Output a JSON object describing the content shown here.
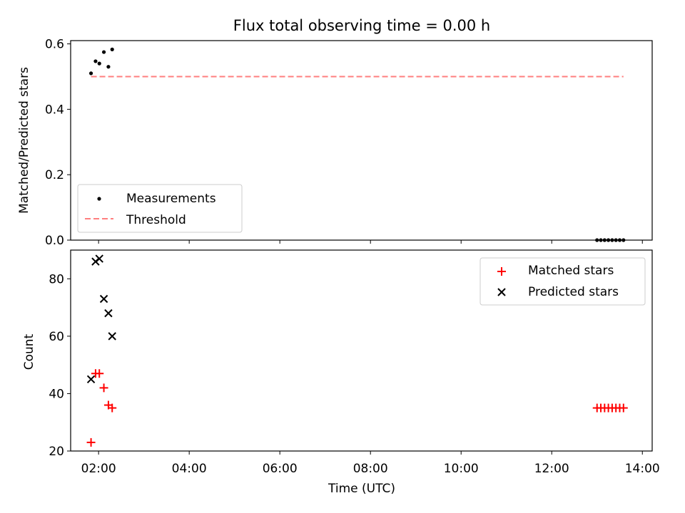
{
  "title": "Flux total observing time = 0.00 h",
  "x_axis": {
    "label": "Time (UTC)",
    "ticks": [
      "02:00",
      "04:00",
      "06:00",
      "08:00",
      "10:00",
      "12:00",
      "14:00"
    ]
  },
  "chart_data": [
    {
      "type": "scatter",
      "ylabel": "Matched/Predicted stars",
      "xlim": [
        "01:23",
        "14:13"
      ],
      "ylim": [
        0,
        0.61
      ],
      "yticks": [
        "0.0",
        "0.2",
        "0.4",
        "0.6"
      ],
      "legend_position": "lower-left",
      "series": [
        {
          "name": "Measurements",
          "kind": "scatter",
          "color": "#000000",
          "points": [
            {
              "x": "01:50",
              "y": 0.51
            },
            {
              "x": "01:56",
              "y": 0.547
            },
            {
              "x": "02:01",
              "y": 0.54
            },
            {
              "x": "02:07",
              "y": 0.575
            },
            {
              "x": "02:13",
              "y": 0.53
            },
            {
              "x": "02:18",
              "y": 0.583
            },
            {
              "x": "13:00",
              "y": 0.0
            },
            {
              "x": "13:05",
              "y": 0.0
            },
            {
              "x": "13:10",
              "y": 0.0
            },
            {
              "x": "13:15",
              "y": 0.0
            },
            {
              "x": "13:20",
              "y": 0.0
            },
            {
              "x": "13:25",
              "y": 0.0
            },
            {
              "x": "13:30",
              "y": 0.0
            },
            {
              "x": "13:35",
              "y": 0.0
            }
          ]
        },
        {
          "name": "Threshold",
          "kind": "line",
          "style": "dashed",
          "color": "#ff7f7f",
          "points": [
            {
              "x": "01:50",
              "y": 0.5
            },
            {
              "x": "13:35",
              "y": 0.5
            }
          ]
        }
      ]
    },
    {
      "type": "scatter",
      "ylabel": "Count",
      "xlim": [
        "01:23",
        "14:13"
      ],
      "ylim": [
        20,
        90
      ],
      "yticks": [
        "20",
        "40",
        "60",
        "80"
      ],
      "legend_position": "upper-right",
      "series": [
        {
          "name": "Matched stars",
          "marker": "plus",
          "color": "#ff0000",
          "points": [
            {
              "x": "01:50",
              "y": 23
            },
            {
              "x": "01:56",
              "y": 47
            },
            {
              "x": "02:01",
              "y": 47
            },
            {
              "x": "02:07",
              "y": 42
            },
            {
              "x": "02:13",
              "y": 36
            },
            {
              "x": "02:18",
              "y": 35
            },
            {
              "x": "13:00",
              "y": 35
            },
            {
              "x": "13:05",
              "y": 35
            },
            {
              "x": "13:10",
              "y": 35
            },
            {
              "x": "13:15",
              "y": 35
            },
            {
              "x": "13:20",
              "y": 35
            },
            {
              "x": "13:25",
              "y": 35
            },
            {
              "x": "13:30",
              "y": 35
            },
            {
              "x": "13:35",
              "y": 35
            }
          ]
        },
        {
          "name": "Predicted stars",
          "marker": "x",
          "color": "#000000",
          "points": [
            {
              "x": "01:50",
              "y": 45
            },
            {
              "x": "01:56",
              "y": 86
            },
            {
              "x": "02:01",
              "y": 87
            },
            {
              "x": "02:07",
              "y": 73
            },
            {
              "x": "02:13",
              "y": 68
            },
            {
              "x": "02:18",
              "y": 60
            }
          ]
        }
      ]
    }
  ]
}
